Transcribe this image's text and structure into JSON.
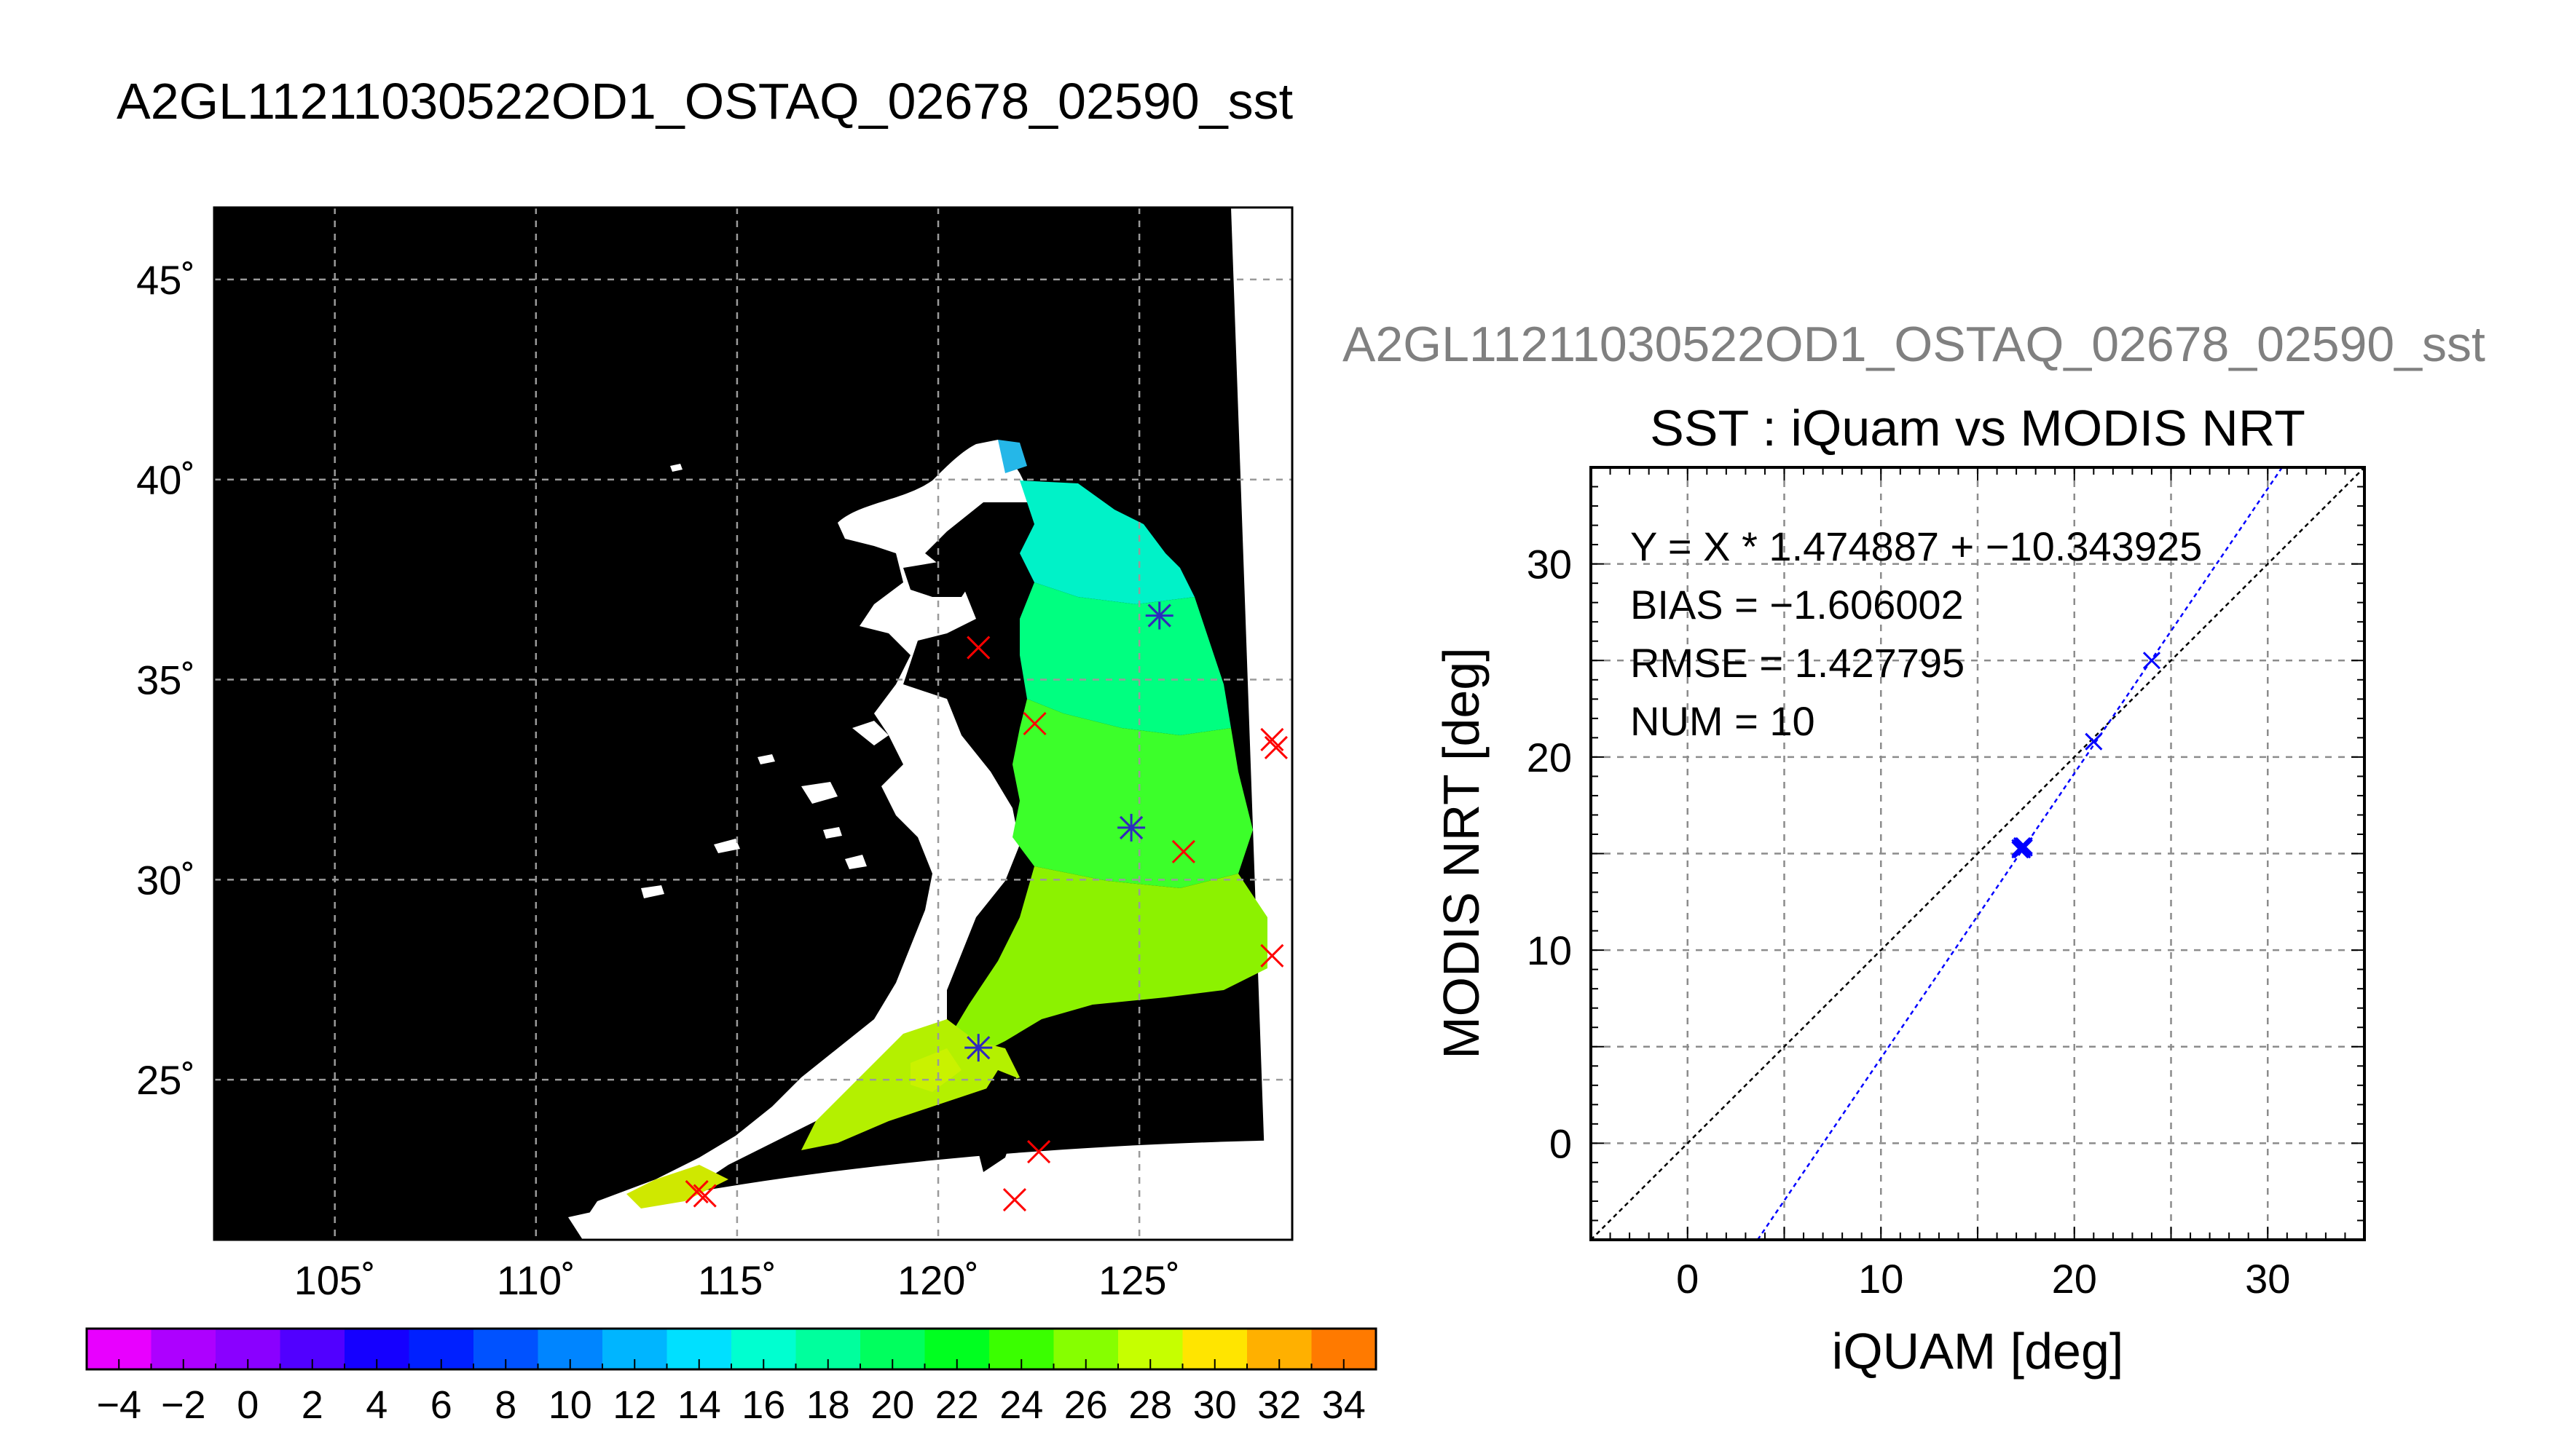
{
  "page_title": "A2GL11211030522OD1_OSTAQ_02678_02590_sst",
  "chart_data": [
    {
      "type": "heatmap",
      "title": "A2GL11211030522OD1_OSTAQ_02678_02590_sst",
      "xlabel": "",
      "ylabel": "",
      "xlim": [
        102,
        128.8
      ],
      "ylim": [
        21,
        46.8
      ],
      "x_ticks": [
        105,
        110,
        115,
        120,
        125
      ],
      "x_tick_labels": [
        "105˚",
        "110˚",
        "115˚",
        "120˚",
        "125˚"
      ],
      "y_ticks": [
        25,
        30,
        35,
        40,
        45
      ],
      "y_tick_labels": [
        "25˚",
        "30˚",
        "35˚",
        "40˚",
        "45˚"
      ],
      "grid": true,
      "colorbar": {
        "min": -5,
        "max": 35,
        "step": 2,
        "tick_values": [
          -4,
          -2,
          0,
          2,
          4,
          6,
          8,
          10,
          12,
          14,
          16,
          18,
          20,
          22,
          24,
          26,
          28,
          30,
          32,
          34
        ],
        "tick_labels": [
          "−4",
          "−2",
          "0",
          "2",
          "4",
          "6",
          "8",
          "10",
          "12",
          "14",
          "16",
          "18",
          "20",
          "22",
          "24",
          "26",
          "28",
          "30",
          "32",
          "34"
        ],
        "colors": [
          "#e800ff",
          "#ad00ff",
          "#8a00ff",
          "#5100ff",
          "#1500ff",
          "#0020ff",
          "#0052ff",
          "#0085ff",
          "#00b5ff",
          "#00e0ff",
          "#00ffd0",
          "#00ff9d",
          "#00ff5e",
          "#00ff20",
          "#3aff00",
          "#86ff00",
          "#c6ff00",
          "#ffe500",
          "#ffb000",
          "#ff7a00",
          "#ff3c00"
        ]
      },
      "series": [
        {
          "marker": "x",
          "color": "#ff0000",
          "points": [
            [
              121.0,
              35.8
            ],
            [
              122.4,
              33.9
            ],
            [
              126.1,
              30.7
            ],
            [
              128.3,
              33.5
            ],
            [
              128.4,
              33.3
            ],
            [
              128.3,
              28.1
            ],
            [
              122.5,
              23.2
            ],
            [
              121.9,
              22.0
            ],
            [
              114.0,
              22.2
            ],
            [
              114.2,
              22.1
            ],
            [
              125.5,
              36.6
            ],
            [
              124.8,
              31.3
            ],
            [
              121.0,
              25.8
            ]
          ]
        },
        {
          "marker": "asterisk",
          "color": "#2b2bbf",
          "points": [
            [
              125.5,
              36.6
            ],
            [
              124.8,
              31.3
            ],
            [
              121.0,
              25.8
            ]
          ]
        }
      ]
    },
    {
      "type": "scatter",
      "title": "SST : iQuam vs MODIS NRT",
      "subtitle": "A2GL11211030522OD1_OSTAQ_02678_02590_sst",
      "xlabel": "iQUAM [deg]",
      "ylabel": "MODIS NRT [deg]",
      "xlim": [
        -5,
        35
      ],
      "ylim": [
        -5,
        35
      ],
      "x_ticks": [
        0,
        10,
        20,
        30
      ],
      "y_ticks": [
        0,
        10,
        20,
        30
      ],
      "grid": true,
      "annotations": [
        "Y = X * 1.474887 + −10.343925",
        "BIAS = −1.606002",
        "RMSE = 1.427795",
        "NUM = 10"
      ],
      "fit": {
        "slope": 1.474887,
        "intercept": -10.343925
      },
      "points": [
        [
          17.3,
          15.3
        ],
        [
          17.4,
          15.4
        ],
        [
          17.2,
          15.2
        ],
        [
          17.3,
          15.2
        ],
        [
          17.4,
          15.3
        ],
        [
          17.3,
          15.4
        ],
        [
          17.2,
          15.3
        ],
        [
          21.0,
          20.8
        ],
        [
          24.0,
          25.0
        ],
        [
          17.35,
          15.35
        ]
      ]
    }
  ]
}
